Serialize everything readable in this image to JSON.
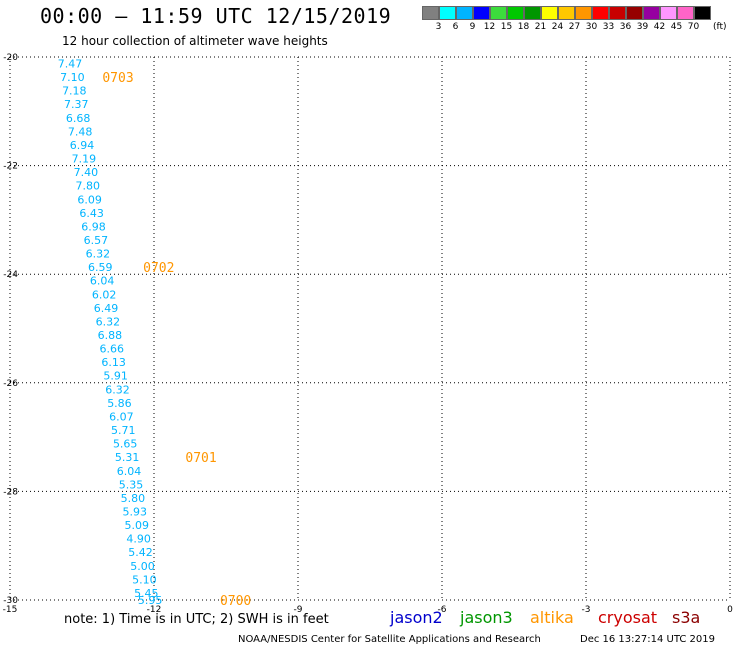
{
  "header": {
    "title": "00:00 – 11:59 UTC 12/15/2019",
    "subtitle": "12 hour collection of altimeter wave heights"
  },
  "color_legend": {
    "swatches": [
      "#808080",
      "#00ffff",
      "#00b4ff",
      "#0000ff",
      "#3cdc3c",
      "#00c800",
      "#009600",
      "#ffff00",
      "#ffc800",
      "#ff9600",
      "#ff0000",
      "#c80000",
      "#960000",
      "#9600a0",
      "#ff96ff",
      "#ff64c8",
      "#000000"
    ],
    "labels": [
      "3",
      "6",
      "9",
      "12",
      "15",
      "18",
      "21",
      "24",
      "27",
      "30",
      "33",
      "36",
      "39",
      "42",
      "45",
      "70"
    ],
    "unit": "(ft)"
  },
  "footer": {
    "note": "note: 1) Time is in UTC; 2) SWH is in feet",
    "satellites": [
      {
        "name": "jason2",
        "color": "#0000cc"
      },
      {
        "name": "jason3",
        "color": "#009600"
      },
      {
        "name": "altika",
        "color": "#ff9600"
      },
      {
        "name": "cryosat",
        "color": "#cc0000"
      },
      {
        "name": "s3a",
        "color": "#8b0000"
      }
    ],
    "credit": "NOAA/NESDIS Center for Satellite Applications and Research",
    "timestamp": "Dec 16 13:27:14 UTC 2019"
  },
  "chart_data": {
    "type": "scatter",
    "xlim": [
      -15,
      0
    ],
    "ylim": [
      -30,
      -20
    ],
    "xticks": [
      "-15",
      "-12",
      "-9",
      "-6",
      "-3",
      "0"
    ],
    "yticks": [
      "-20",
      "-22",
      "-24",
      "-26",
      "-28",
      "-30"
    ],
    "grid": true,
    "point_color": "#00b4ff",
    "time_label_color": "#ff9600",
    "points": [
      {
        "x": -13.75,
        "y": -20.12,
        "value": "7.47"
      },
      {
        "x": -13.7,
        "y": -20.37,
        "value": "7.10"
      },
      {
        "x": -13.66,
        "y": -20.62,
        "value": "7.18"
      },
      {
        "x": -13.62,
        "y": -20.87,
        "value": "7.37"
      },
      {
        "x": -13.58,
        "y": -21.12,
        "value": "6.68"
      },
      {
        "x": -13.54,
        "y": -21.37,
        "value": "7.48"
      },
      {
        "x": -13.5,
        "y": -21.62,
        "value": "6.94"
      },
      {
        "x": -13.46,
        "y": -21.87,
        "value": "7.19"
      },
      {
        "x": -13.42,
        "y": -22.12,
        "value": "7.40"
      },
      {
        "x": -13.38,
        "y": -22.37,
        "value": "7.80"
      },
      {
        "x": -13.34,
        "y": -22.62,
        "value": "6.09"
      },
      {
        "x": -13.3,
        "y": -22.87,
        "value": "6.43"
      },
      {
        "x": -13.26,
        "y": -23.12,
        "value": "6.98"
      },
      {
        "x": -13.21,
        "y": -23.37,
        "value": "6.57"
      },
      {
        "x": -13.17,
        "y": -23.62,
        "value": "6.32"
      },
      {
        "x": -13.12,
        "y": -23.87,
        "value": "6.59"
      },
      {
        "x": -13.08,
        "y": -24.12,
        "value": "6.04"
      },
      {
        "x": -13.04,
        "y": -24.37,
        "value": "6.02"
      },
      {
        "x": -13.0,
        "y": -24.62,
        "value": "6.49"
      },
      {
        "x": -12.96,
        "y": -24.87,
        "value": "6.32"
      },
      {
        "x": -12.92,
        "y": -25.12,
        "value": "6.88"
      },
      {
        "x": -12.88,
        "y": -25.37,
        "value": "6.66"
      },
      {
        "x": -12.84,
        "y": -25.62,
        "value": "6.13"
      },
      {
        "x": -12.8,
        "y": -25.87,
        "value": "5.91"
      },
      {
        "x": -12.76,
        "y": -26.12,
        "value": "6.32"
      },
      {
        "x": -12.72,
        "y": -26.37,
        "value": "5.86"
      },
      {
        "x": -12.68,
        "y": -26.62,
        "value": "6.07"
      },
      {
        "x": -12.64,
        "y": -26.87,
        "value": "5.71"
      },
      {
        "x": -12.6,
        "y": -27.12,
        "value": "5.65"
      },
      {
        "x": -12.56,
        "y": -27.37,
        "value": "5.31"
      },
      {
        "x": -12.52,
        "y": -27.62,
        "value": "6.04"
      },
      {
        "x": -12.48,
        "y": -27.87,
        "value": "5.35"
      },
      {
        "x": -12.44,
        "y": -28.12,
        "value": "5.80"
      },
      {
        "x": -12.4,
        "y": -28.37,
        "value": "5.93"
      },
      {
        "x": -12.36,
        "y": -28.62,
        "value": "5.09"
      },
      {
        "x": -12.32,
        "y": -28.87,
        "value": "4.90"
      },
      {
        "x": -12.28,
        "y": -29.12,
        "value": "5.42"
      },
      {
        "x": -12.24,
        "y": -29.37,
        "value": "5.00"
      },
      {
        "x": -12.2,
        "y": -29.62,
        "value": "5.10"
      },
      {
        "x": -12.16,
        "y": -29.87,
        "value": "5.45"
      },
      {
        "x": -12.08,
        "y": -30.0,
        "value": "5.95"
      }
    ],
    "time_labels": [
      {
        "x": -12.75,
        "y": -20.37,
        "text": "0703"
      },
      {
        "x": -11.9,
        "y": -23.87,
        "text": "0702"
      },
      {
        "x": -11.02,
        "y": -27.37,
        "text": "0701"
      },
      {
        "x": -10.3,
        "y": -30.0,
        "text": "0700"
      }
    ]
  }
}
